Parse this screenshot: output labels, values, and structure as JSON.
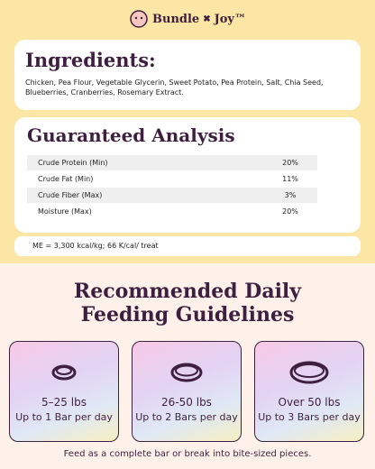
{
  "brand": {
    "left": "Bundle",
    "right": "Joy™"
  },
  "ingredients": {
    "title": "Ingredients:",
    "text": "Chicken, Pea Flour, Vegetable Glycerin, Sweet Potato, Pea Protein, Salt, Chia Seed, Blueberries, Cranberries, Rosemary Extract."
  },
  "analysis": {
    "title": "Guaranteed Analysis",
    "rows": [
      [
        "Crude Protein (Min)",
        "20%"
      ],
      [
        "Crude Fat (Min)",
        "11%"
      ],
      [
        "Crude Fiber (Max)",
        "3%"
      ],
      [
        "Moisture (Max)",
        "20%"
      ]
    ]
  },
  "energy": "ME = 3,300 kcal/kg; 66 K/cal/ treat",
  "feeding": {
    "title_lines": [
      "Recommended Daily",
      "Feeding Guidelines"
    ],
    "cards": [
      {
        "weight": "5–25 lbs",
        "amount": "Up to 1 Bar per day"
      },
      {
        "weight": "26-50 lbs",
        "amount": "Up to 2 Bars per day"
      },
      {
        "weight": "Over 50 lbs",
        "amount": "Up to 3 Bars per day"
      }
    ]
  },
  "footer": "Feed as a complete bar or break into bite-sized pieces."
}
